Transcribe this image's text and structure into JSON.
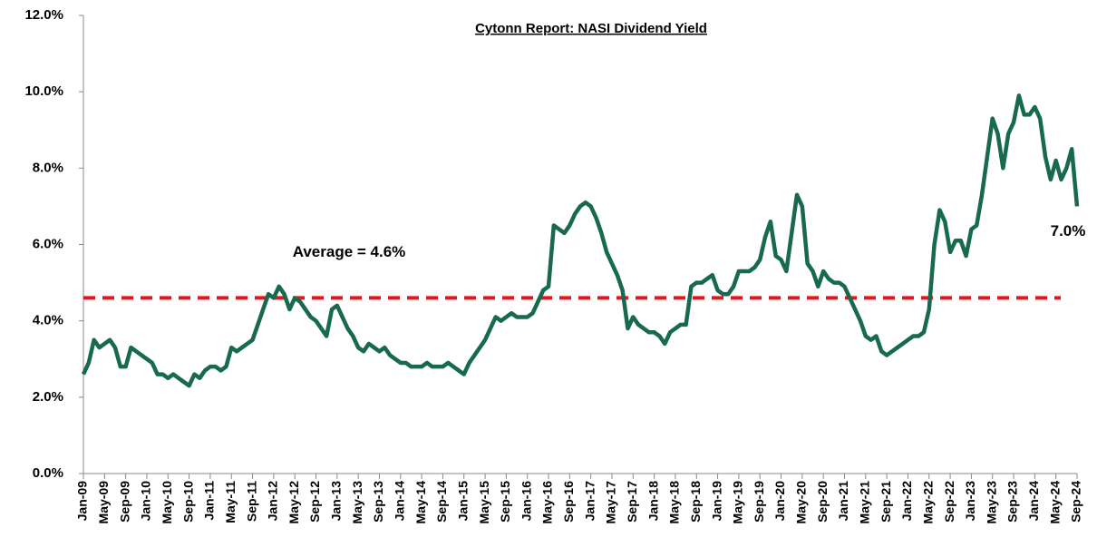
{
  "chart_data": {
    "type": "line",
    "title": "Cytonn Report: NASI Dividend Yield",
    "categories": [
      "Jan-09",
      null,
      null,
      null,
      "May-09",
      null,
      null,
      null,
      "Sep-09",
      null,
      null,
      null,
      "Jan-10",
      null,
      null,
      null,
      "May-10",
      null,
      null,
      null,
      "Sep-10",
      null,
      null,
      null,
      "Jan-11",
      null,
      null,
      null,
      "May-11",
      null,
      null,
      null,
      "Sep-11",
      null,
      null,
      null,
      "Jan-12",
      null,
      null,
      null,
      "May-12",
      null,
      null,
      null,
      "Sep-12",
      null,
      null,
      null,
      "Jan-13",
      null,
      null,
      null,
      "May-13",
      null,
      null,
      null,
      "Sep-13",
      null,
      null,
      null,
      "Jan-14",
      null,
      null,
      null,
      "May-14",
      null,
      null,
      null,
      "Sep-14",
      null,
      null,
      null,
      "Jan-15",
      null,
      null,
      null,
      "May-15",
      null,
      null,
      null,
      "Sep-15",
      null,
      null,
      null,
      "Jan-16",
      null,
      null,
      null,
      "May-16",
      null,
      null,
      null,
      "Sep-16",
      null,
      null,
      null,
      "Jan-17",
      null,
      null,
      null,
      "May-17",
      null,
      null,
      null,
      "Sep-17",
      null,
      null,
      null,
      "Jan-18",
      null,
      null,
      null,
      "May-18",
      null,
      null,
      null,
      "Sep-18",
      null,
      null,
      null,
      "Jan-19",
      null,
      null,
      null,
      "May-19",
      null,
      null,
      null,
      "Sep-19",
      null,
      null,
      null,
      "Jan-20",
      null,
      null,
      null,
      "May-20",
      null,
      null,
      null,
      "Sep-20",
      null,
      null,
      null,
      "Jan-21",
      null,
      null,
      null,
      "May-21",
      null,
      null,
      null,
      "Sep-21",
      null,
      null,
      null,
      "Jan-22",
      null,
      null,
      null,
      "May-22",
      null,
      null,
      null,
      "Sep-22",
      null,
      null,
      null,
      "Jan-23",
      null,
      null,
      null,
      "May-23",
      null,
      null,
      null,
      "Sep-23",
      null,
      null,
      null,
      "Jan-24",
      null,
      null,
      null,
      "May-24",
      null,
      null,
      null,
      "Sep-24"
    ],
    "series": [
      {
        "color": "#17694f",
        "values": [
          2.6,
          2.9,
          3.5,
          3.3,
          3.4,
          3.5,
          3.3,
          2.8,
          2.8,
          3.3,
          3.2,
          3.1,
          3.0,
          2.9,
          2.6,
          2.6,
          2.5,
          2.6,
          2.5,
          2.4,
          2.3,
          2.6,
          2.5,
          2.7,
          2.8,
          2.8,
          2.7,
          2.8,
          3.3,
          3.2,
          3.3,
          3.4,
          3.5,
          3.9,
          4.3,
          4.7,
          4.6,
          4.9,
          4.7,
          4.3,
          4.6,
          4.5,
          4.3,
          4.1,
          4.0,
          3.8,
          3.6,
          4.3,
          4.4,
          4.1,
          3.8,
          3.6,
          3.3,
          3.2,
          3.4,
          3.3,
          3.2,
          3.3,
          3.1,
          3.0,
          2.9,
          2.9,
          2.8,
          2.8,
          2.8,
          2.9,
          2.8,
          2.8,
          2.8,
          2.9,
          2.8,
          2.7,
          2.6,
          2.9,
          3.1,
          3.3,
          3.5,
          3.8,
          4.1,
          4.0,
          4.1,
          4.2,
          4.1,
          4.1,
          4.1,
          4.2,
          4.5,
          4.8,
          4.9,
          6.5,
          6.4,
          6.3,
          6.5,
          6.8,
          7.0,
          7.1,
          7.0,
          6.7,
          6.3,
          5.8,
          5.5,
          5.2,
          4.8,
          3.8,
          4.1,
          3.9,
          3.8,
          3.7,
          3.7,
          3.6,
          3.4,
          3.7,
          3.8,
          3.9,
          3.9,
          4.9,
          5.0,
          5.0,
          5.1,
          5.2,
          4.8,
          4.7,
          4.7,
          4.9,
          5.3,
          5.3,
          5.3,
          5.4,
          5.6,
          6.2,
          6.6,
          5.7,
          5.6,
          5.3,
          6.3,
          7.3,
          7.0,
          5.5,
          5.3,
          4.9,
          5.3,
          5.1,
          5.0,
          5.0,
          4.9,
          4.6,
          4.3,
          4.0,
          3.6,
          3.5,
          3.6,
          3.2,
          3.1,
          3.2,
          3.3,
          3.4,
          3.5,
          3.6,
          3.6,
          3.7,
          4.3,
          6.0,
          6.9,
          6.6,
          5.8,
          6.1,
          6.1,
          5.7,
          6.4,
          6.5,
          7.3,
          8.3,
          9.3,
          8.9,
          8.0,
          8.9,
          9.2,
          9.9,
          9.4,
          9.4,
          9.6,
          9.3,
          8.3,
          7.7,
          8.2,
          7.7,
          8.0,
          8.5,
          7.0
        ]
      }
    ],
    "end_label": {
      "text": "7.0%",
      "value": 7.0
    },
    "average": {
      "text": "Average = 4.6%",
      "value": 4.6,
      "color": "#e8141b"
    },
    "ylim": [
      0,
      12
    ],
    "yticks": [
      {
        "value": 0,
        "label": "0.0%"
      },
      {
        "value": 2,
        "label": "2.0%"
      },
      {
        "value": 4,
        "label": "4.0%"
      },
      {
        "value": 6,
        "label": "6.0%"
      },
      {
        "value": 8,
        "label": "8.0%"
      },
      {
        "value": 10,
        "label": "10.0%"
      },
      {
        "value": 12,
        "label": "12.0%"
      }
    ],
    "grid": false
  }
}
